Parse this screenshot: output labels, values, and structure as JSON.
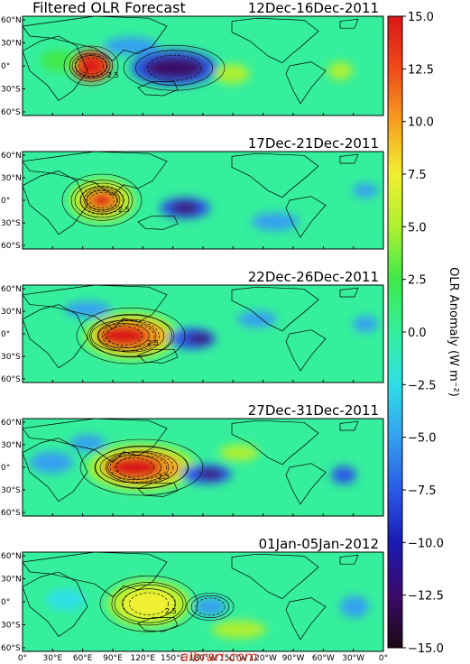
{
  "title": "Filtered OLR  Forecast",
  "panels": [
    {
      "date": "12Dec-16Dec-2011"
    },
    {
      "date": "17Dec-21Dec-2011"
    },
    {
      "date": "22Dec-26Dec-2011"
    },
    {
      "date": "27Dec-31Dec-2011"
    },
    {
      "date": "01Jan-05Jan-2012"
    }
  ],
  "lat_labels": [
    "60°N",
    "30°N",
    "0°",
    "30°S",
    "60°S"
  ],
  "lon_labels": [
    "0°",
    "30°E",
    "60°E",
    "90°E",
    "120°E",
    "150°E",
    "180°W",
    "150°W",
    "120°W",
    "90°W",
    "60°W",
    "30°W",
    "0°"
  ],
  "colorbar": {
    "title": "OLR Anomaly (W m⁻²)",
    "ticks": [
      "15.0",
      "12.5",
      "10.0",
      "7.5",
      "5.0",
      "2.5",
      "0.0",
      "−2.5",
      "−5.0",
      "−7.5",
      "−10.0",
      "−12.5",
      "−15.0"
    ],
    "range": [
      -15,
      15
    ],
    "colors": [
      "#1a0a14",
      "#3a0a6a",
      "#1a1ab4",
      "#2a5ae6",
      "#34a0f0",
      "#2fdfe6",
      "#35ef9c",
      "#3fe94a",
      "#aef032",
      "#f2f030",
      "#f5a020",
      "#f04a1a",
      "#d81818"
    ]
  },
  "contour_label": "2.5",
  "watermark": "albrari.com"
}
